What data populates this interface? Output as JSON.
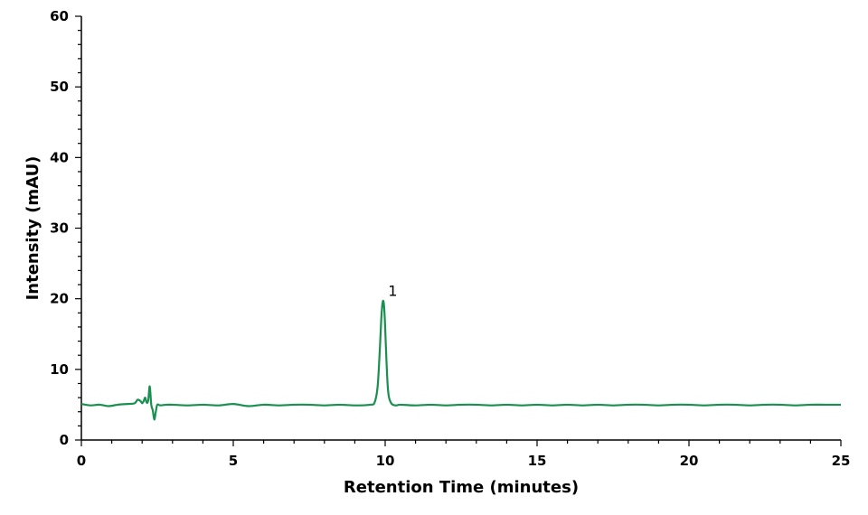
{
  "chart_data": {
    "type": "line",
    "title": "",
    "xlabel": "Retention Time (minutes)",
    "ylabel": "Intensity (mAU)",
    "xlim": [
      0,
      25
    ],
    "ylim": [
      0,
      60
    ],
    "x_ticks": [
      0,
      5,
      10,
      15,
      20,
      25
    ],
    "y_ticks": [
      0,
      10,
      20,
      30,
      40,
      50,
      60
    ],
    "x_minor_step": 1,
    "y_minor_step": 2,
    "grid": false,
    "legend": "none",
    "series_color": "#1a9050",
    "series": [
      {
        "x": [
          0,
          0.3,
          0.6,
          0.9,
          1.2,
          1.5,
          1.75,
          1.85,
          1.95,
          2.0,
          2.05,
          2.1,
          2.15,
          2.2,
          2.25,
          2.3,
          2.35,
          2.4,
          2.45,
          2.5,
          2.6,
          2.8,
          3.0,
          3.5,
          4.0,
          4.5,
          5.0,
          5.5,
          6.0,
          6.5,
          7.0,
          7.5,
          8.0,
          8.5,
          9.0,
          9.5,
          9.65,
          9.75,
          9.82,
          9.87,
          9.91,
          9.95,
          9.99,
          10.04,
          10.1,
          10.2,
          10.35,
          10.5,
          11.0,
          11.5,
          12.0,
          12.5,
          13.0,
          13.5,
          14.0,
          14.5,
          15.0,
          15.5,
          16.0,
          16.5,
          17.0,
          17.5,
          18.0,
          18.5,
          19.0,
          19.5,
          20.0,
          20.5,
          21.0,
          21.5,
          22.0,
          22.5,
          23.0,
          23.5,
          24.0,
          24.5,
          25.0
        ],
        "y": [
          5.1,
          4.9,
          5.0,
          4.8,
          5.0,
          5.1,
          5.2,
          5.7,
          5.5,
          5.2,
          5.5,
          6.0,
          5.3,
          5.6,
          7.6,
          5.0,
          4.2,
          2.9,
          4.0,
          5.0,
          4.9,
          5.0,
          5.0,
          4.9,
          5.0,
          4.9,
          5.1,
          4.8,
          5.0,
          4.9,
          5.0,
          5.0,
          4.9,
          5.0,
          4.9,
          5.0,
          5.3,
          7.5,
          12.5,
          17.0,
          19.3,
          19.5,
          17.0,
          11.5,
          6.8,
          5.2,
          4.9,
          5.0,
          4.9,
          5.0,
          4.9,
          5.0,
          5.0,
          4.9,
          5.0,
          4.9,
          5.0,
          4.9,
          5.0,
          4.9,
          5.0,
          4.9,
          5.0,
          5.0,
          4.9,
          5.0,
          5.0,
          4.9,
          5.0,
          5.0,
          4.9,
          5.0,
          5.0,
          4.9,
          5.0,
          5.0,
          5.0
        ]
      }
    ],
    "annotations": [
      {
        "text": "1",
        "x": 10.25,
        "y": 20.4
      }
    ]
  }
}
